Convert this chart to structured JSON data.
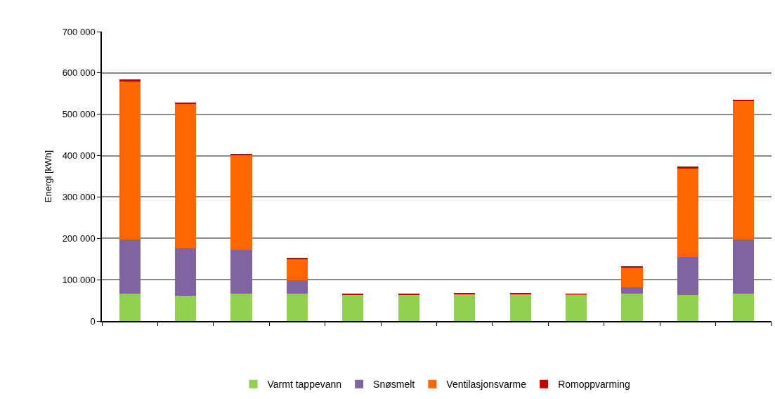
{
  "chart_data": {
    "type": "bar",
    "stacked": true,
    "ylabel": "Energi [kWh]",
    "categories": [
      null,
      null,
      null,
      null,
      null,
      null,
      null,
      null,
      null,
      null,
      null,
      null
    ],
    "series": [
      {
        "name": "Varmt tappevann",
        "color": "#92d050",
        "values": [
          66000,
          61000,
          66000,
          66000,
          64000,
          63000,
          65000,
          65000,
          64000,
          66000,
          63000,
          66000
        ]
      },
      {
        "name": "Snøsmelt",
        "color": "#8064a2",
        "values": [
          131000,
          115000,
          105000,
          33000,
          null,
          0,
          0,
          0,
          null,
          16000,
          92000,
          131000
        ]
      },
      {
        "name": "Ventilasjonsvarme",
        "color": "#ff6600",
        "values": [
          382000,
          350000,
          230000,
          52000,
          0,
          0,
          0,
          0,
          1000,
          48000,
          214000,
          334000
        ]
      },
      {
        "name": "Romoppvarming",
        "color": "#c00000",
        "values": [
          6000,
          3000,
          2000,
          1000,
          2000,
          2000,
          2000,
          2000,
          1000,
          3000,
          4000,
          5000
        ]
      }
    ],
    "ylim": [
      0,
      700000
    ],
    "yticks": [
      0,
      {
        "value": 100000,
        "label": "100 000"
      },
      {
        "value": 200000,
        "label": "200 000"
      },
      {
        "value": 300000,
        "label": "300 000"
      },
      {
        "value": 400000,
        "label": "400 000"
      },
      {
        "value": 500000,
        "label": "500 000"
      },
      {
        "value": 600000,
        "label": "600 000"
      },
      {
        "value": 700000,
        "label": "700 000"
      }
    ],
    "grid": "y",
    "legend": "bottom"
  }
}
